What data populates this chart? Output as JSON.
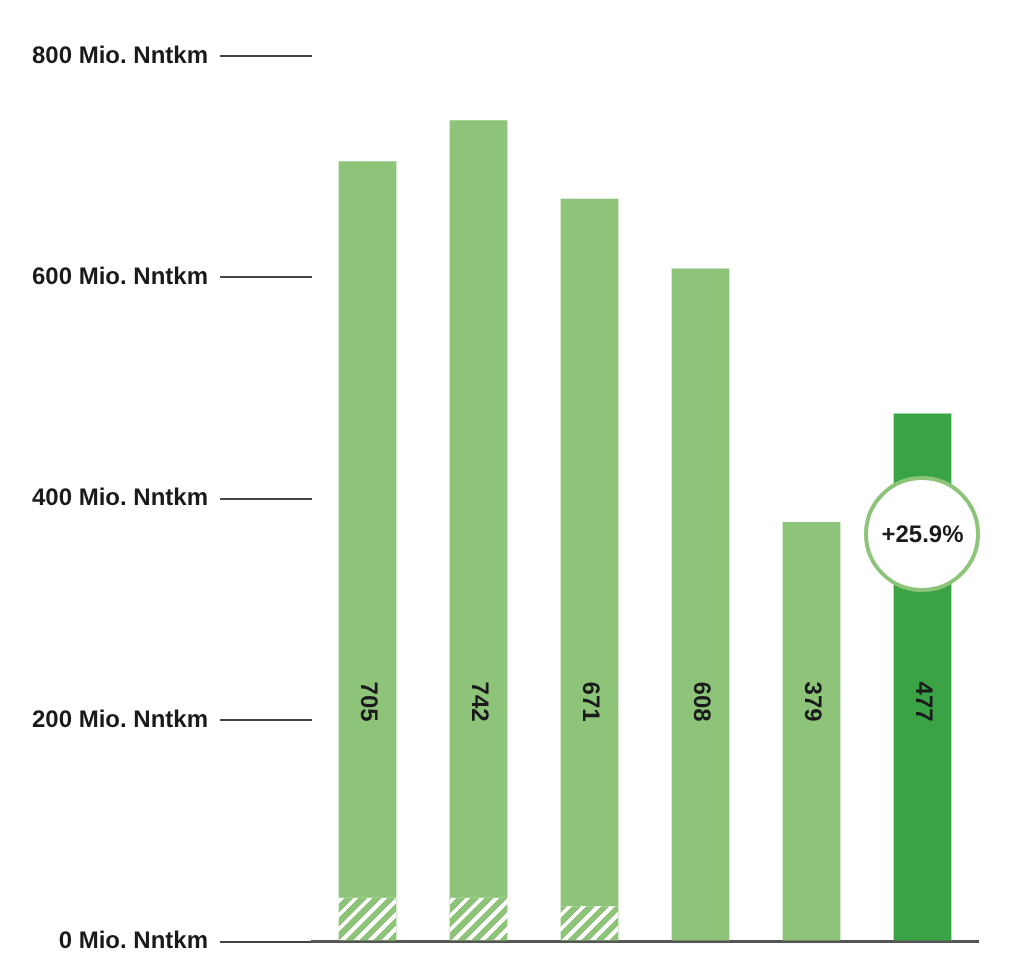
{
  "chart_data": {
    "type": "bar",
    "stacked": true,
    "categories": [
      null,
      null,
      null,
      null,
      null,
      null
    ],
    "series": [
      {
        "color": "#8dc47a",
        "values": [
          40,
          40,
          32,
          null,
          null,
          null
        ]
      },
      {
        "colors": [
          "#8dc47a",
          "#8dc47a",
          "#8dc47a",
          "#8dc47a",
          "#8dc47a",
          "#3aa346"
        ],
        "values": [
          665,
          702,
          639,
          608,
          379,
          477
        ]
      }
    ],
    "totals": [
      "705",
      "742",
      "671",
      "608",
      "379",
      "477"
    ],
    "ylim": [
      0,
      800
    ],
    "yticks": [
      {
        "value": 0,
        "label": "0 Mio. Nntkm"
      },
      {
        "value": 200,
        "label": "200 Mio. Nntkm"
      },
      {
        "value": 400,
        "label": "400 Mio. Nntkm"
      },
      {
        "value": 600,
        "label": "600 Mio. Nntkm"
      },
      {
        "value": 800,
        "label": "800 Mio. Nntkm"
      }
    ],
    "annotations": [
      "+25.9%"
    ],
    "grid": false,
    "legend": false
  }
}
